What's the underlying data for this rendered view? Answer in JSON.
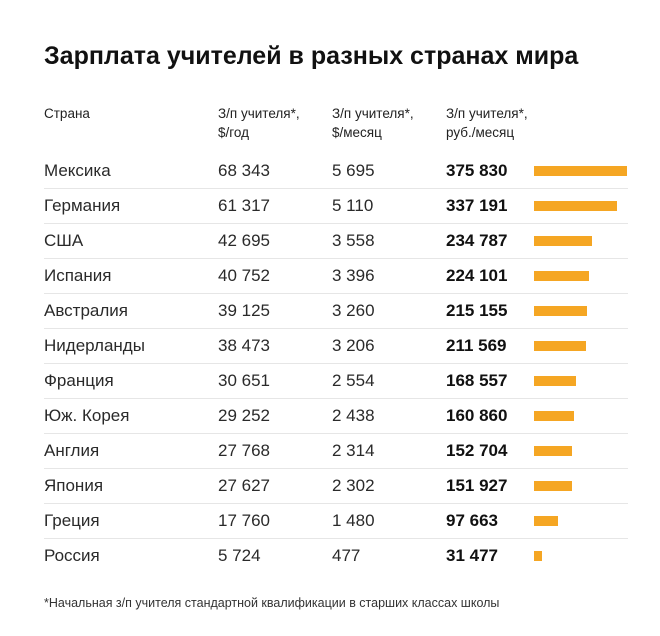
{
  "title": "Зарплата учителей в разных странах мира",
  "headers": {
    "country": "Страна",
    "usd_year": "З/п учителя*,\n$/год",
    "usd_month": "З/п учителя*,\n$/месяц",
    "rub_month": "З/п учителя*,\nруб./месяц"
  },
  "footnote": "*Начальная з/п учителя стандартной квалификации в старших классах школы",
  "colors": {
    "bar": "#f5a623"
  },
  "chart_data": {
    "type": "table",
    "title": "Зарплата учителей в разных странах мира",
    "columns": [
      "Страна",
      "З/п учителя*, $/год",
      "З/п учителя*, $/месяц",
      "З/п учителя*, руб./месяц"
    ],
    "rows": [
      {
        "country": "Мексика",
        "usd_year": "68 343",
        "usd_month": "5 695",
        "rub_month": "375 830",
        "value": 375830
      },
      {
        "country": "Германия",
        "usd_year": "61 317",
        "usd_month": "5 110",
        "rub_month": "337 191",
        "value": 337191
      },
      {
        "country": "США",
        "usd_year": "42 695",
        "usd_month": "3 558",
        "rub_month": "234 787",
        "value": 234787
      },
      {
        "country": "Испания",
        "usd_year": "40 752",
        "usd_month": "3 396",
        "rub_month": "224 101",
        "value": 224101
      },
      {
        "country": "Австралия",
        "usd_year": "39 125",
        "usd_month": "3 260",
        "rub_month": "215 155",
        "value": 215155
      },
      {
        "country": "Нидерланды",
        "usd_year": "38 473",
        "usd_month": "3 206",
        "rub_month": "211 569",
        "value": 211569
      },
      {
        "country": "Франция",
        "usd_year": "30 651",
        "usd_month": "2 554",
        "rub_month": "168 557",
        "value": 168557
      },
      {
        "country": "Юж. Корея",
        "usd_year": "29 252",
        "usd_month": "2 438",
        "rub_month": "160 860",
        "value": 160860
      },
      {
        "country": "Англия",
        "usd_year": "27 768",
        "usd_month": "2 314",
        "rub_month": "152 704",
        "value": 152704
      },
      {
        "country": "Япония",
        "usd_year": "27 627",
        "usd_month": "2 302",
        "rub_month": "151 927",
        "value": 151927
      },
      {
        "country": "Греция",
        "usd_year": "17 760",
        "usd_month": "1 480",
        "rub_month": "97 663",
        "value": 97663
      },
      {
        "country": "Россия",
        "usd_year": "5 724",
        "usd_month": "477",
        "rub_month": "31 477",
        "value": 31477
      }
    ]
  }
}
